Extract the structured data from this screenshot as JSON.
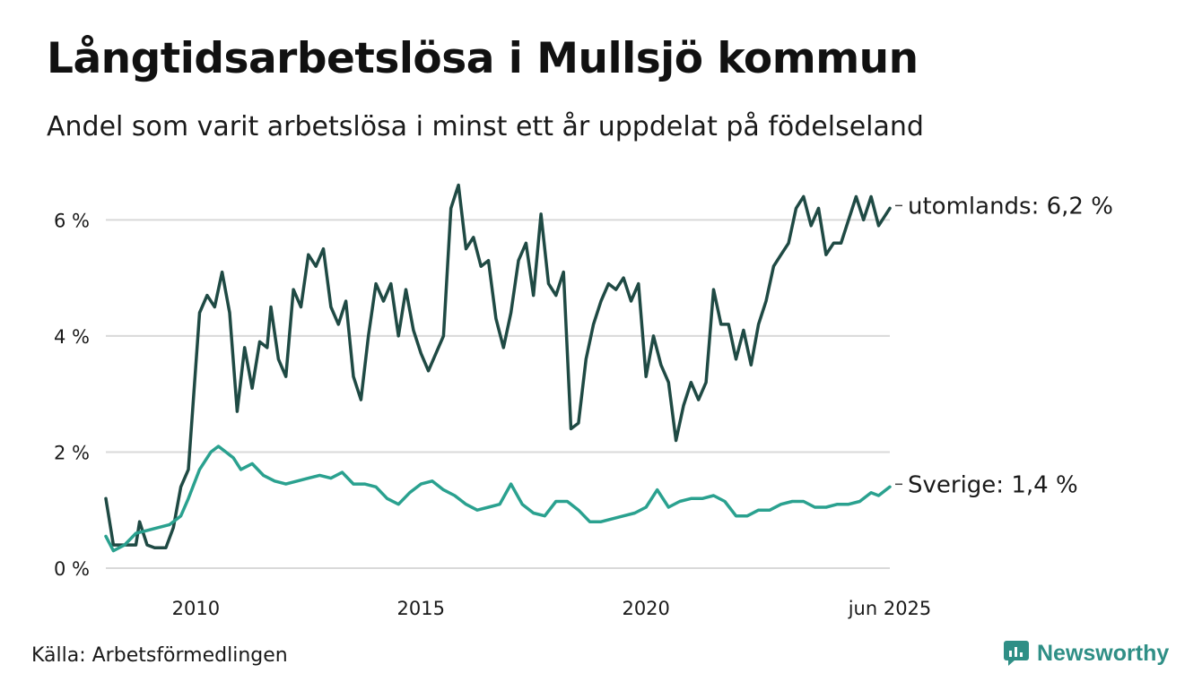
{
  "title": "Långtidsarbetslösa i Mullsjö kommun",
  "subtitle": "Andel som varit arbetslösa i minst ett år uppdelat på födelseland",
  "source": "Källa: Arbetsförmedlingen",
  "brand": "Newsworthy",
  "colors": {
    "utomlands": "#1f4a44",
    "sverige": "#2aa18f",
    "grid": "#d9d9d9",
    "brand": "#2f8f86"
  },
  "icons": {
    "brand_logo": "newsworthy-logo-icon"
  },
  "chart_data": {
    "type": "line",
    "title": "Långtidsarbetslösa i Mullsjö kommun",
    "subtitle": "Andel som varit arbetslösa i minst ett år uppdelat på födelseland",
    "x_start": "2008-01",
    "x_end": "2025-06",
    "x_ticks": [
      {
        "date": "2010-01",
        "label": "2010"
      },
      {
        "date": "2015-01",
        "label": "2015"
      },
      {
        "date": "2020-01",
        "label": "2020"
      },
      {
        "date": "2025-06",
        "label": "jun 2025"
      }
    ],
    "y_ticks": [
      {
        "value": 0,
        "label": "0 %"
      },
      {
        "value": 2,
        "label": "2 %"
      },
      {
        "value": 4,
        "label": "4 %"
      },
      {
        "value": 6,
        "label": "6 %"
      }
    ],
    "ylim": [
      0,
      6.7
    ],
    "grid": true,
    "legend": "end-of-line labels",
    "series": [
      {
        "name": "utomlands",
        "end_label": "utomlands: 6,2 %",
        "color": "#1f4a44",
        "points": [
          [
            "2008-01",
            1.2
          ],
          [
            "2008-03",
            0.4
          ],
          [
            "2008-06",
            0.4
          ],
          [
            "2008-09",
            0.4
          ],
          [
            "2008-10",
            0.8
          ],
          [
            "2008-12",
            0.4
          ],
          [
            "2009-02",
            0.35
          ],
          [
            "2009-05",
            0.35
          ],
          [
            "2009-07",
            0.7
          ],
          [
            "2009-09",
            1.4
          ],
          [
            "2009-11",
            1.7
          ],
          [
            "2010-02",
            4.4
          ],
          [
            "2010-04",
            4.7
          ],
          [
            "2010-06",
            4.5
          ],
          [
            "2010-08",
            5.1
          ],
          [
            "2010-10",
            4.4
          ],
          [
            "2010-12",
            2.7
          ],
          [
            "2011-02",
            3.8
          ],
          [
            "2011-04",
            3.1
          ],
          [
            "2011-06",
            3.9
          ],
          [
            "2011-08",
            3.8
          ],
          [
            "2011-09",
            4.5
          ],
          [
            "2011-11",
            3.6
          ],
          [
            "2012-01",
            3.3
          ],
          [
            "2012-03",
            4.8
          ],
          [
            "2012-05",
            4.5
          ],
          [
            "2012-07",
            5.4
          ],
          [
            "2012-09",
            5.2
          ],
          [
            "2012-11",
            5.5
          ],
          [
            "2013-01",
            4.5
          ],
          [
            "2013-03",
            4.2
          ],
          [
            "2013-05",
            4.6
          ],
          [
            "2013-07",
            3.3
          ],
          [
            "2013-09",
            2.9
          ],
          [
            "2013-11",
            4.0
          ],
          [
            "2014-01",
            4.9
          ],
          [
            "2014-03",
            4.6
          ],
          [
            "2014-05",
            4.9
          ],
          [
            "2014-07",
            4.0
          ],
          [
            "2014-09",
            4.8
          ],
          [
            "2014-11",
            4.1
          ],
          [
            "2015-01",
            3.7
          ],
          [
            "2015-03",
            3.4
          ],
          [
            "2015-05",
            3.7
          ],
          [
            "2015-07",
            4.0
          ],
          [
            "2015-09",
            6.2
          ],
          [
            "2015-11",
            6.6
          ],
          [
            "2016-01",
            5.5
          ],
          [
            "2016-03",
            5.7
          ],
          [
            "2016-05",
            5.2
          ],
          [
            "2016-07",
            5.3
          ],
          [
            "2016-09",
            4.3
          ],
          [
            "2016-11",
            3.8
          ],
          [
            "2017-01",
            4.4
          ],
          [
            "2017-03",
            5.3
          ],
          [
            "2017-05",
            5.6
          ],
          [
            "2017-07",
            4.7
          ],
          [
            "2017-09",
            6.1
          ],
          [
            "2017-11",
            4.9
          ],
          [
            "2018-01",
            4.7
          ],
          [
            "2018-03",
            5.1
          ],
          [
            "2018-05",
            2.4
          ],
          [
            "2018-07",
            2.5
          ],
          [
            "2018-09",
            3.6
          ],
          [
            "2018-11",
            4.2
          ],
          [
            "2019-01",
            4.6
          ],
          [
            "2019-03",
            4.9
          ],
          [
            "2019-05",
            4.8
          ],
          [
            "2019-07",
            5.0
          ],
          [
            "2019-09",
            4.6
          ],
          [
            "2019-11",
            4.9
          ],
          [
            "2020-01",
            3.3
          ],
          [
            "2020-03",
            4.0
          ],
          [
            "2020-05",
            3.5
          ],
          [
            "2020-07",
            3.2
          ],
          [
            "2020-09",
            2.2
          ],
          [
            "2020-11",
            2.8
          ],
          [
            "2021-01",
            3.2
          ],
          [
            "2021-03",
            2.9
          ],
          [
            "2021-05",
            3.2
          ],
          [
            "2021-07",
            4.8
          ],
          [
            "2021-09",
            4.2
          ],
          [
            "2021-11",
            4.2
          ],
          [
            "2022-01",
            3.6
          ],
          [
            "2022-03",
            4.1
          ],
          [
            "2022-05",
            3.5
          ],
          [
            "2022-07",
            4.2
          ],
          [
            "2022-09",
            4.6
          ],
          [
            "2022-11",
            5.2
          ],
          [
            "2023-01",
            5.4
          ],
          [
            "2023-03",
            5.6
          ],
          [
            "2023-05",
            6.2
          ],
          [
            "2023-07",
            6.4
          ],
          [
            "2023-09",
            5.9
          ],
          [
            "2023-11",
            6.2
          ],
          [
            "2024-01",
            5.4
          ],
          [
            "2024-03",
            5.6
          ],
          [
            "2024-05",
            5.6
          ],
          [
            "2024-07",
            6.0
          ],
          [
            "2024-09",
            6.4
          ],
          [
            "2024-11",
            6.0
          ],
          [
            "2025-01",
            6.4
          ],
          [
            "2025-03",
            5.9
          ],
          [
            "2025-06",
            6.2
          ]
        ]
      },
      {
        "name": "Sverige",
        "end_label": "Sverige: 1,4 %",
        "color": "#2aa18f",
        "points": [
          [
            "2008-01",
            0.55
          ],
          [
            "2008-03",
            0.3
          ],
          [
            "2008-06",
            0.4
          ],
          [
            "2008-09",
            0.6
          ],
          [
            "2008-12",
            0.65
          ],
          [
            "2009-03",
            0.7
          ],
          [
            "2009-06",
            0.75
          ],
          [
            "2009-09",
            0.9
          ],
          [
            "2009-11",
            1.2
          ],
          [
            "2010-02",
            1.7
          ],
          [
            "2010-05",
            2.0
          ],
          [
            "2010-07",
            2.1
          ],
          [
            "2010-09",
            2.0
          ],
          [
            "2010-11",
            1.9
          ],
          [
            "2011-01",
            1.7
          ],
          [
            "2011-04",
            1.8
          ],
          [
            "2011-07",
            1.6
          ],
          [
            "2011-10",
            1.5
          ],
          [
            "2012-01",
            1.45
          ],
          [
            "2012-04",
            1.5
          ],
          [
            "2012-07",
            1.55
          ],
          [
            "2012-10",
            1.6
          ],
          [
            "2013-01",
            1.55
          ],
          [
            "2013-04",
            1.65
          ],
          [
            "2013-07",
            1.45
          ],
          [
            "2013-10",
            1.45
          ],
          [
            "2014-01",
            1.4
          ],
          [
            "2014-04",
            1.2
          ],
          [
            "2014-07",
            1.1
          ],
          [
            "2014-10",
            1.3
          ],
          [
            "2015-01",
            1.45
          ],
          [
            "2015-04",
            1.5
          ],
          [
            "2015-07",
            1.35
          ],
          [
            "2015-10",
            1.25
          ],
          [
            "2016-01",
            1.1
          ],
          [
            "2016-04",
            1.0
          ],
          [
            "2016-07",
            1.05
          ],
          [
            "2016-10",
            1.1
          ],
          [
            "2017-01",
            1.45
          ],
          [
            "2017-04",
            1.1
          ],
          [
            "2017-07",
            0.95
          ],
          [
            "2017-10",
            0.9
          ],
          [
            "2018-01",
            1.15
          ],
          [
            "2018-04",
            1.15
          ],
          [
            "2018-07",
            1.0
          ],
          [
            "2018-10",
            0.8
          ],
          [
            "2019-01",
            0.8
          ],
          [
            "2019-04",
            0.85
          ],
          [
            "2019-07",
            0.9
          ],
          [
            "2019-10",
            0.95
          ],
          [
            "2020-01",
            1.05
          ],
          [
            "2020-04",
            1.35
          ],
          [
            "2020-07",
            1.05
          ],
          [
            "2020-10",
            1.15
          ],
          [
            "2021-01",
            1.2
          ],
          [
            "2021-04",
            1.2
          ],
          [
            "2021-07",
            1.25
          ],
          [
            "2021-10",
            1.15
          ],
          [
            "2022-01",
            0.9
          ],
          [
            "2022-04",
            0.9
          ],
          [
            "2022-07",
            1.0
          ],
          [
            "2022-10",
            1.0
          ],
          [
            "2023-01",
            1.1
          ],
          [
            "2023-04",
            1.15
          ],
          [
            "2023-07",
            1.15
          ],
          [
            "2023-10",
            1.05
          ],
          [
            "2024-01",
            1.05
          ],
          [
            "2024-04",
            1.1
          ],
          [
            "2024-07",
            1.1
          ],
          [
            "2024-10",
            1.15
          ],
          [
            "2025-01",
            1.3
          ],
          [
            "2025-03",
            1.25
          ],
          [
            "2025-06",
            1.4
          ]
        ]
      }
    ]
  }
}
